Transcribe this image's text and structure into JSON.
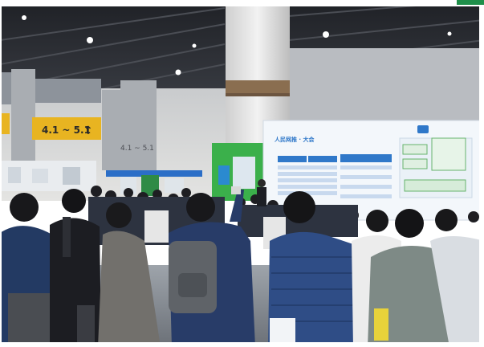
{
  "scene": {
    "signs": {
      "hall_sign_left": "4.1 ~ 5.1",
      "pillar_sign": "4.1 ~ 5.1"
    },
    "screen": {
      "title": "人民网推 · 大会"
    },
    "colors": {
      "ceiling": "#2a2d33",
      "wall": "#d8d8d8",
      "sign_yellow": "#e8b421",
      "screen_bg": "#f3f7fb",
      "screen_accent": "#2f78c9",
      "booth_green": "#3bb04b",
      "jacket_blue": "#2f4d86",
      "jacket_grey": "#7e8a86"
    }
  }
}
